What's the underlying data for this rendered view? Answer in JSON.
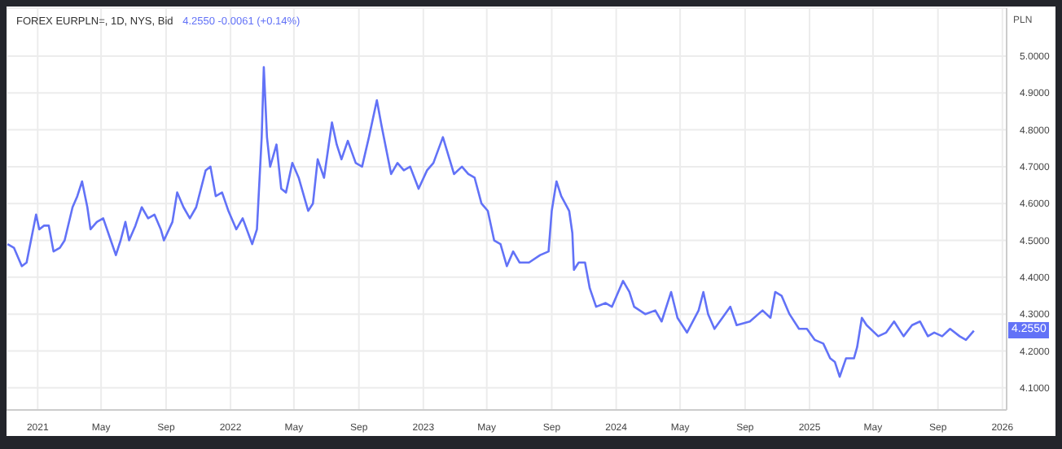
{
  "chart_data": {
    "type": "line",
    "title": "FOREX EURPLN=, 1D, NYS, Bid",
    "subtitle": "4.2550 -0.0061 (+0.14%)",
    "ylabel": "PLN",
    "annotations": [
      {
        "text": "4.2550",
        "y": 4.255
      }
    ],
    "xlim": [
      "2020-11-03",
      "2026-01-09"
    ],
    "xticks": [
      {
        "value": "2021-01-01",
        "label": "2021"
      },
      {
        "value": "2021-05-01",
        "label": "May"
      },
      {
        "value": "2021-09-01",
        "label": "Sep"
      },
      {
        "value": "2022-01-01",
        "label": "2022"
      },
      {
        "value": "2022-05-01",
        "label": "May"
      },
      {
        "value": "2022-09-01",
        "label": "Sep"
      },
      {
        "value": "2023-01-01",
        "label": "2023"
      },
      {
        "value": "2023-05-01",
        "label": "May"
      },
      {
        "value": "2023-09-01",
        "label": "Sep"
      },
      {
        "value": "2024-01-01",
        "label": "2024"
      },
      {
        "value": "2024-05-01",
        "label": "May"
      },
      {
        "value": "2024-09-01",
        "label": "Sep"
      },
      {
        "value": "2025-01-01",
        "label": "2025"
      },
      {
        "value": "2025-05-01",
        "label": "May"
      },
      {
        "value": "2025-09-01",
        "label": "Sep"
      },
      {
        "value": "2026-01-01",
        "label": "2026"
      }
    ],
    "ylim": [
      4.04,
      5.13
    ],
    "yticks": [
      {
        "value": 4.1,
        "label": "4.1000"
      },
      {
        "value": 4.2,
        "label": "4.2000"
      },
      {
        "value": 4.3,
        "label": "4.3000"
      },
      {
        "value": 4.4,
        "label": "4.4000"
      },
      {
        "value": 4.5,
        "label": "4.5000"
      },
      {
        "value": 4.6,
        "label": "4.6000"
      },
      {
        "value": 4.7,
        "label": "4.7000"
      },
      {
        "value": 4.8,
        "label": "4.8000"
      },
      {
        "value": 4.9,
        "label": "4.9000"
      },
      {
        "value": 5.0,
        "label": "5.0000"
      }
    ],
    "grid": true,
    "marker": "none",
    "line_style": "solid",
    "series": [
      {
        "color": "#6272f7",
        "x": [
          "2020-11-05",
          "2020-11-17",
          "2020-12-02",
          "2020-12-11",
          "2020-12-29",
          "2021-01-04",
          "2021-01-13",
          "2021-01-22",
          "2021-01-31",
          "2021-02-12",
          "2021-02-21",
          "2021-03-08",
          "2021-03-17",
          "2021-03-26",
          "2021-04-05",
          "2021-04-11",
          "2021-04-23",
          "2021-05-05",
          "2021-05-17",
          "2021-05-29",
          "2021-06-07",
          "2021-06-16",
          "2021-06-23",
          "2021-07-05",
          "2021-07-17",
          "2021-07-29",
          "2021-08-10",
          "2021-08-22",
          "2021-08-28",
          "2021-09-13",
          "2021-09-22",
          "2021-10-04",
          "2021-10-16",
          "2021-10-28",
          "2021-11-15",
          "2021-11-24",
          "2021-12-04",
          "2021-12-16",
          "2021-12-28",
          "2022-01-12",
          "2022-01-24",
          "2022-02-11",
          "2022-02-20",
          "2022-03-01",
          "2022-03-05",
          "2022-03-11",
          "2022-03-17",
          "2022-03-23",
          "2022-03-29",
          "2022-04-07",
          "2022-04-16",
          "2022-04-28",
          "2022-05-10",
          "2022-05-28",
          "2022-06-06",
          "2022-06-15",
          "2022-06-27",
          "2022-07-12",
          "2022-07-21",
          "2022-07-30",
          "2022-08-11",
          "2022-08-26",
          "2022-09-07",
          "2022-09-20",
          "2022-10-05",
          "2022-10-14",
          "2022-11-01",
          "2022-11-13",
          "2022-11-25",
          "2022-12-07",
          "2022-12-23",
          "2023-01-08",
          "2023-01-20",
          "2023-02-07",
          "2023-02-28",
          "2023-03-15",
          "2023-03-27",
          "2023-04-08",
          "2023-04-21",
          "2023-05-03",
          "2023-05-15",
          "2023-05-27",
          "2023-06-08",
          "2023-06-20",
          "2023-07-02",
          "2023-07-20",
          "2023-08-10",
          "2023-08-26",
          "2023-09-01",
          "2023-09-10",
          "2023-09-19",
          "2023-10-04",
          "2023-10-10",
          "2023-10-13",
          "2023-10-22",
          "2023-11-03",
          "2023-11-12",
          "2023-11-24",
          "2023-12-12",
          "2023-12-24",
          "2024-01-14",
          "2024-01-26",
          "2024-02-04",
          "2024-02-25",
          "2024-03-15",
          "2024-03-27",
          "2024-04-14",
          "2024-04-26",
          "2024-05-14",
          "2024-06-05",
          "2024-06-14",
          "2024-06-23",
          "2024-07-05",
          "2024-07-20",
          "2024-08-04",
          "2024-08-16",
          "2024-09-10",
          "2024-10-04",
          "2024-10-19",
          "2024-10-28",
          "2024-11-09",
          "2024-11-24",
          "2024-12-12",
          "2024-12-27",
          "2025-01-11",
          "2025-01-27",
          "2025-02-09",
          "2025-02-18",
          "2025-02-27",
          "2025-03-11",
          "2025-03-26",
          "2025-04-01",
          "2025-04-10",
          "2025-04-19",
          "2025-05-11",
          "2025-05-26",
          "2025-06-10",
          "2025-06-28",
          "2025-07-14",
          "2025-07-29",
          "2025-08-13",
          "2025-08-25",
          "2025-09-09",
          "2025-09-24",
          "2025-10-12",
          "2025-10-24",
          "2025-11-08"
        ],
        "values": [
          4.49,
          4.48,
          4.43,
          4.44,
          4.57,
          4.53,
          4.54,
          4.54,
          4.47,
          4.48,
          4.5,
          4.59,
          4.62,
          4.66,
          4.59,
          4.53,
          4.55,
          4.56,
          4.51,
          4.46,
          4.5,
          4.55,
          4.5,
          4.54,
          4.59,
          4.56,
          4.57,
          4.53,
          4.5,
          4.55,
          4.63,
          4.59,
          4.56,
          4.59,
          4.69,
          4.7,
          4.62,
          4.63,
          4.58,
          4.53,
          4.56,
          4.49,
          4.53,
          4.78,
          4.97,
          4.78,
          4.7,
          4.73,
          4.76,
          4.64,
          4.63,
          4.71,
          4.67,
          4.58,
          4.6,
          4.72,
          4.67,
          4.82,
          4.76,
          4.72,
          4.77,
          4.71,
          4.7,
          4.78,
          4.88,
          4.81,
          4.68,
          4.71,
          4.69,
          4.7,
          4.64,
          4.69,
          4.71,
          4.78,
          4.68,
          4.7,
          4.68,
          4.67,
          4.6,
          4.58,
          4.5,
          4.49,
          4.43,
          4.47,
          4.44,
          4.44,
          4.46,
          4.47,
          4.58,
          4.66,
          4.62,
          4.58,
          4.52,
          4.42,
          4.44,
          4.44,
          4.37,
          4.32,
          4.33,
          4.32,
          4.39,
          4.36,
          4.32,
          4.3,
          4.31,
          4.28,
          4.36,
          4.29,
          4.25,
          4.31,
          4.36,
          4.3,
          4.26,
          4.29,
          4.32,
          4.27,
          4.28,
          4.31,
          4.29,
          4.36,
          4.35,
          4.3,
          4.26,
          4.26,
          4.23,
          4.22,
          4.18,
          4.17,
          4.13,
          4.18,
          4.18,
          4.21,
          4.29,
          4.27,
          4.24,
          4.25,
          4.28,
          4.24,
          4.27,
          4.28,
          4.24,
          4.25,
          4.24,
          4.26,
          4.24,
          4.23,
          4.255
        ]
      }
    ]
  }
}
